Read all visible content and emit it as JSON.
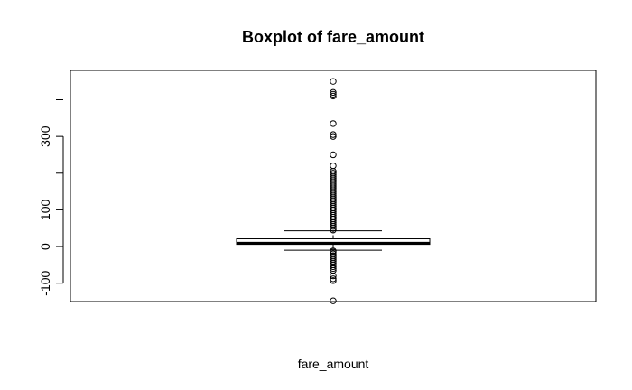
{
  "chart_data": {
    "type": "boxplot",
    "title": "Boxplot of fare_amount",
    "xlabel": "fare_amount",
    "ylabel": "",
    "ylim": [
      -150,
      480
    ],
    "yticks": [
      -100,
      0,
      100,
      300
    ],
    "ytick_labels": [
      "-100",
      "0",
      "100",
      "300"
    ],
    "series": [
      {
        "values": {
          "min_whisker": -10,
          "q1": 6,
          "median": 9,
          "q3": 21,
          "max_whisker": 43
        },
        "outliers": [
          450,
          420,
          415,
          410,
          335,
          305,
          300,
          250,
          220,
          205,
          200,
          195,
          190,
          185,
          180,
          175,
          170,
          165,
          160,
          155,
          150,
          145,
          140,
          135,
          130,
          125,
          120,
          115,
          110,
          105,
          100,
          95,
          90,
          85,
          80,
          75,
          70,
          65,
          60,
          55,
          50,
          45,
          -12,
          -15,
          -20,
          -25,
          -30,
          -35,
          -40,
          -45,
          -50,
          -55,
          -60,
          -65,
          -80,
          -88,
          -93,
          -148
        ]
      }
    ],
    "grid": false,
    "legend": "none"
  }
}
